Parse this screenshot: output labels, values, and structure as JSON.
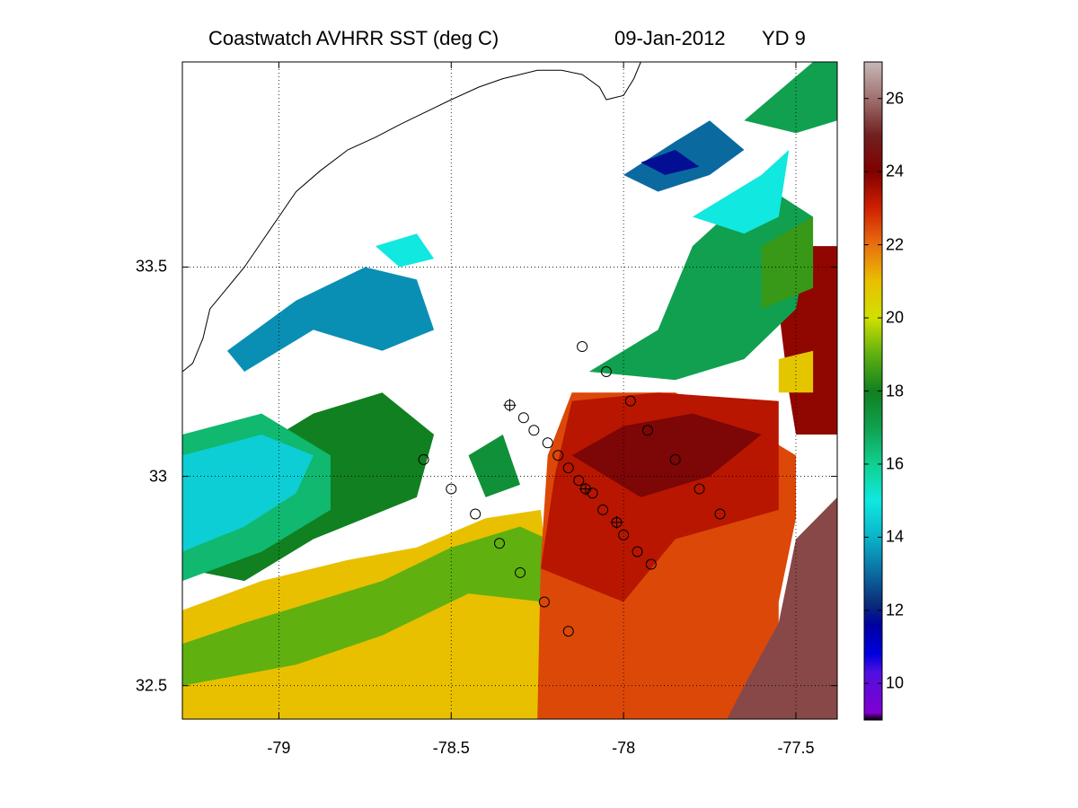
{
  "title": {
    "product": "Coastwatch   AVHRR   SST  (deg C)",
    "date": "09-Jan-2012",
    "yearday": "YD 9"
  },
  "map": {
    "lon_range": [
      -79.28,
      -77.38
    ],
    "lat_range": [
      32.42,
      33.99
    ],
    "x_ticks": [
      {
        "value": -79,
        "label": "-79"
      },
      {
        "value": -78.5,
        "label": "-78.5"
      },
      {
        "value": -78,
        "label": "-78"
      },
      {
        "value": -77.5,
        "label": "-77.5"
      }
    ],
    "y_ticks": [
      {
        "value": 33.5,
        "label": "33.5"
      },
      {
        "value": 33,
        "label": "33"
      },
      {
        "value": 32.5,
        "label": "32.5"
      }
    ],
    "grid": "dotted",
    "coastline": [
      [
        -79.28,
        33.25
      ],
      [
        -79.25,
        33.27
      ],
      [
        -79.22,
        33.33
      ],
      [
        -79.2,
        33.4
      ],
      [
        -79.15,
        33.45
      ],
      [
        -79.1,
        33.5
      ],
      [
        -79.05,
        33.56
      ],
      [
        -79.0,
        33.62
      ],
      [
        -78.95,
        33.68
      ],
      [
        -78.88,
        33.73
      ],
      [
        -78.8,
        33.78
      ],
      [
        -78.72,
        33.81
      ],
      [
        -78.65,
        33.84
      ],
      [
        -78.6,
        33.86
      ],
      [
        -78.55,
        33.88
      ],
      [
        -78.5,
        33.9
      ],
      [
        -78.42,
        33.93
      ],
      [
        -78.35,
        33.95
      ],
      [
        -78.3,
        33.96
      ],
      [
        -78.25,
        33.97
      ],
      [
        -78.18,
        33.97
      ],
      [
        -78.12,
        33.96
      ],
      [
        -78.07,
        33.93
      ],
      [
        -78.05,
        33.9
      ],
      [
        -78.0,
        33.91
      ],
      [
        -77.97,
        33.95
      ],
      [
        -77.95,
        33.99
      ]
    ],
    "sst_fields": [
      {
        "temp": 21.0,
        "poly": [
          [
            -79.28,
            32.42
          ],
          [
            -78.2,
            32.42
          ],
          [
            -78.21,
            32.7
          ],
          [
            -78.24,
            32.92
          ],
          [
            -78.4,
            32.9
          ],
          [
            -78.6,
            32.83
          ],
          [
            -78.8,
            32.8
          ],
          [
            -79.05,
            32.75
          ],
          [
            -79.28,
            32.68
          ]
        ]
      },
      {
        "temp": 19.0,
        "poly": [
          [
            -79.28,
            32.6
          ],
          [
            -79.1,
            32.65
          ],
          [
            -78.9,
            32.7
          ],
          [
            -78.7,
            32.75
          ],
          [
            -78.5,
            32.83
          ],
          [
            -78.3,
            32.88
          ],
          [
            -78.22,
            32.85
          ],
          [
            -78.23,
            32.7
          ],
          [
            -78.45,
            32.72
          ],
          [
            -78.7,
            32.62
          ],
          [
            -78.95,
            32.55
          ],
          [
            -79.28,
            32.5
          ]
        ]
      },
      {
        "temp": 18.0,
        "poly": [
          [
            -79.28,
            32.78
          ],
          [
            -79.1,
            32.75
          ],
          [
            -78.9,
            32.85
          ],
          [
            -78.75,
            32.9
          ],
          [
            -78.6,
            32.95
          ],
          [
            -78.55,
            33.1
          ],
          [
            -78.7,
            33.2
          ],
          [
            -78.9,
            33.15
          ],
          [
            -79.1,
            33.05
          ],
          [
            -79.28,
            32.95
          ]
        ]
      },
      {
        "temp": 16.5,
        "poly": [
          [
            -79.28,
            32.75
          ],
          [
            -79.05,
            32.82
          ],
          [
            -78.85,
            32.92
          ],
          [
            -78.85,
            33.05
          ],
          [
            -79.05,
            33.15
          ],
          [
            -79.28,
            33.1
          ]
        ]
      },
      {
        "temp": 14.5,
        "poly": [
          [
            -79.28,
            32.82
          ],
          [
            -79.1,
            32.88
          ],
          [
            -78.95,
            32.96
          ],
          [
            -78.9,
            33.05
          ],
          [
            -79.05,
            33.1
          ],
          [
            -79.28,
            33.05
          ]
        ]
      },
      {
        "temp": 13.5,
        "poly": [
          [
            -79.15,
            33.3
          ],
          [
            -78.95,
            33.42
          ],
          [
            -78.75,
            33.5
          ],
          [
            -78.6,
            33.47
          ],
          [
            -78.55,
            33.35
          ],
          [
            -78.7,
            33.3
          ],
          [
            -78.9,
            33.35
          ],
          [
            -79.1,
            33.25
          ]
        ]
      },
      {
        "temp": 15.0,
        "poly": [
          [
            -78.72,
            33.55
          ],
          [
            -78.6,
            33.58
          ],
          [
            -78.55,
            33.52
          ],
          [
            -78.65,
            33.5
          ]
        ]
      },
      {
        "temp": 17.5,
        "poly": [
          [
            -78.45,
            33.05
          ],
          [
            -78.35,
            33.1
          ],
          [
            -78.3,
            32.98
          ],
          [
            -78.4,
            32.95
          ]
        ]
      },
      {
        "temp": 22.5,
        "poly": [
          [
            -78.25,
            32.42
          ],
          [
            -77.55,
            32.42
          ],
          [
            -77.55,
            32.7
          ],
          [
            -77.5,
            32.9
          ],
          [
            -77.5,
            33.05
          ],
          [
            -77.6,
            33.1
          ],
          [
            -77.85,
            33.2
          ],
          [
            -78.15,
            33.2
          ],
          [
            -78.22,
            33.05
          ],
          [
            -78.24,
            32.8
          ]
        ]
      },
      {
        "temp": 23.3,
        "poly": [
          [
            -78.24,
            32.78
          ],
          [
            -78.0,
            32.7
          ],
          [
            -77.85,
            32.85
          ],
          [
            -77.55,
            32.92
          ],
          [
            -77.55,
            33.18
          ],
          [
            -77.9,
            33.2
          ],
          [
            -78.15,
            33.18
          ],
          [
            -78.2,
            33.0
          ]
        ]
      },
      {
        "temp": 24.2,
        "poly": [
          [
            -78.15,
            33.05
          ],
          [
            -77.95,
            32.95
          ],
          [
            -77.75,
            33.0
          ],
          [
            -77.6,
            33.1
          ],
          [
            -77.8,
            33.15
          ],
          [
            -78.0,
            33.12
          ]
        ]
      },
      {
        "temp": 23.8,
        "poly": [
          [
            -77.5,
            33.1
          ],
          [
            -77.38,
            33.1
          ],
          [
            -77.38,
            33.55
          ],
          [
            -77.45,
            33.55
          ],
          [
            -77.55,
            33.4
          ],
          [
            -77.52,
            33.2
          ]
        ]
      },
      {
        "temp": 25.5,
        "poly": [
          [
            -77.7,
            32.42
          ],
          [
            -77.38,
            32.42
          ],
          [
            -77.38,
            32.95
          ],
          [
            -77.5,
            32.85
          ],
          [
            -77.55,
            32.65
          ],
          [
            -77.65,
            32.5
          ]
        ]
      },
      {
        "temp": 17.0,
        "poly": [
          [
            -78.1,
            33.25
          ],
          [
            -77.9,
            33.35
          ],
          [
            -77.8,
            33.55
          ],
          [
            -77.6,
            33.7
          ],
          [
            -77.45,
            33.62
          ],
          [
            -77.5,
            33.4
          ],
          [
            -77.65,
            33.28
          ],
          [
            -77.85,
            33.23
          ]
        ]
      },
      {
        "temp": 18.5,
        "poly": [
          [
            -77.6,
            33.55
          ],
          [
            -77.45,
            33.62
          ],
          [
            -77.45,
            33.45
          ],
          [
            -77.6,
            33.4
          ]
        ]
      },
      {
        "temp": 15.0,
        "poly": [
          [
            -77.8,
            33.62
          ],
          [
            -77.6,
            33.72
          ],
          [
            -77.52,
            33.78
          ],
          [
            -77.55,
            33.62
          ],
          [
            -77.65,
            33.58
          ]
        ]
      },
      {
        "temp": 13.0,
        "poly": [
          [
            -78.0,
            33.72
          ],
          [
            -77.85,
            33.8
          ],
          [
            -77.75,
            33.85
          ],
          [
            -77.65,
            33.78
          ],
          [
            -77.75,
            33.72
          ],
          [
            -77.9,
            33.68
          ]
        ]
      },
      {
        "temp": 11.8,
        "poly": [
          [
            -77.95,
            33.75
          ],
          [
            -77.85,
            33.78
          ],
          [
            -77.78,
            33.74
          ],
          [
            -77.88,
            33.72
          ]
        ]
      },
      {
        "temp": 17.0,
        "poly": [
          [
            -77.65,
            33.85
          ],
          [
            -77.45,
            33.99
          ],
          [
            -77.38,
            33.99
          ],
          [
            -77.38,
            33.85
          ],
          [
            -77.5,
            33.82
          ]
        ]
      },
      {
        "temp": 20.8,
        "poly": [
          [
            -77.55,
            33.28
          ],
          [
            -77.45,
            33.3
          ],
          [
            -77.45,
            33.2
          ],
          [
            -77.55,
            33.2
          ]
        ]
      }
    ],
    "stations": [
      [
        -78.33,
        33.17,
        true
      ],
      [
        -78.29,
        33.14,
        false
      ],
      [
        -78.26,
        33.11,
        false
      ],
      [
        -78.22,
        33.08,
        false
      ],
      [
        -78.19,
        33.05,
        false
      ],
      [
        -78.16,
        33.02,
        false
      ],
      [
        -78.13,
        32.99,
        false
      ],
      [
        -78.11,
        32.97,
        true
      ],
      [
        -78.09,
        32.96,
        false
      ],
      [
        -78.06,
        32.92,
        false
      ],
      [
        -78.02,
        32.89,
        true
      ],
      [
        -78.0,
        32.86,
        false
      ],
      [
        -77.96,
        32.82,
        false
      ],
      [
        -77.92,
        32.79,
        false
      ],
      [
        -78.12,
        33.31,
        false
      ],
      [
        -78.05,
        33.25,
        false
      ],
      [
        -77.98,
        33.18,
        false
      ],
      [
        -77.93,
        33.11,
        false
      ],
      [
        -77.85,
        33.04,
        false
      ],
      [
        -77.78,
        32.97,
        false
      ],
      [
        -77.72,
        32.91,
        false
      ],
      [
        -78.58,
        33.04,
        false
      ],
      [
        -78.5,
        32.97,
        false
      ],
      [
        -78.43,
        32.91,
        false
      ],
      [
        -78.36,
        32.84,
        false
      ],
      [
        -78.3,
        32.77,
        false
      ],
      [
        -78.23,
        32.7,
        false
      ],
      [
        -78.16,
        32.63,
        false
      ]
    ]
  },
  "colorbar": {
    "vmin": 9,
    "vmax": 27,
    "ticks": [
      {
        "value": 10,
        "label": "10"
      },
      {
        "value": 12,
        "label": "12"
      },
      {
        "value": 14,
        "label": "14"
      },
      {
        "value": 16,
        "label": "16"
      },
      {
        "value": 18,
        "label": "18"
      },
      {
        "value": 20,
        "label": "20"
      },
      {
        "value": 22,
        "label": "22"
      },
      {
        "value": 24,
        "label": "24"
      },
      {
        "value": 26,
        "label": "26"
      }
    ],
    "colormap": [
      [
        9.0,
        "#000000"
      ],
      [
        9.2,
        "#8000d0"
      ],
      [
        10.3,
        "#5010e0"
      ],
      [
        10.8,
        "#0000e0"
      ],
      [
        11.6,
        "#0000a0"
      ],
      [
        12.2,
        "#0a2e78"
      ],
      [
        13.0,
        "#0a6aa0"
      ],
      [
        14.0,
        "#0ab4c8"
      ],
      [
        15.0,
        "#10e8e0"
      ],
      [
        16.0,
        "#10d090"
      ],
      [
        17.0,
        "#10a050"
      ],
      [
        18.0,
        "#108020"
      ],
      [
        19.0,
        "#60b010"
      ],
      [
        20.0,
        "#d0e000"
      ],
      [
        21.0,
        "#e8c000"
      ],
      [
        22.0,
        "#e87010"
      ],
      [
        23.0,
        "#d02000"
      ],
      [
        24.0,
        "#800000"
      ],
      [
        25.0,
        "#702020"
      ],
      [
        26.0,
        "#a07070"
      ],
      [
        27.0,
        "#c8b8b8"
      ]
    ]
  }
}
